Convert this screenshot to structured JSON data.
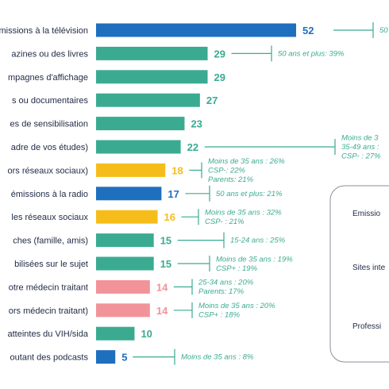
{
  "colors": {
    "blue": "#1f6fbf",
    "teal": "#3aab91",
    "yellow": "#f6bd1a",
    "pink": "#f2939a",
    "note": "#3aab91",
    "text": "#1f2a44"
  },
  "chart_data": {
    "type": "bar",
    "orientation": "horizontal",
    "xlim": [
      0,
      52
    ],
    "categories": [
      "missions à la télévision",
      "azines ou des livres",
      "mpagnes d'affichage",
      "s ou documentaires",
      "es de sensibilisation",
      "adre de vos études)",
      "ors réseaux sociaux)",
      "émissions à la radio",
      "les réseaux sociaux",
      "ches (famille, amis)",
      "bilisées sur le sujet",
      "otre médecin traitant",
      "ors médecin traitant)",
      "atteintes du VIH/sida",
      "outant des podcasts"
    ],
    "values": [
      52,
      29,
      29,
      27,
      23,
      22,
      18,
      17,
      16,
      15,
      15,
      14,
      14,
      10,
      5
    ],
    "bar_colors": [
      "blue",
      "teal",
      "teal",
      "teal",
      "teal",
      "teal",
      "yellow",
      "blue",
      "yellow",
      "teal",
      "teal",
      "pink",
      "pink",
      "teal",
      "blue"
    ],
    "annotations": [
      {
        "row": 0,
        "lines": [
          "50"
        ]
      },
      {
        "row": 1,
        "lines": [
          "50 ans et plus: 39%"
        ]
      },
      {
        "row": 5,
        "lines": [
          "Moins de 3",
          "35-49 ans :",
          "CSP- : 27%"
        ]
      },
      {
        "row": 6,
        "lines": [
          "Moins de 35 ans : 26%",
          "CSP-: 22%",
          "Parents: 21%"
        ]
      },
      {
        "row": 7,
        "lines": [
          "50 ans et plus: 21%"
        ]
      },
      {
        "row": 8,
        "lines": [
          "Moins de 35 ans : 32%",
          "CSP- : 21%"
        ]
      },
      {
        "row": 9,
        "lines": [
          "15-24 ans : 25%"
        ]
      },
      {
        "row": 10,
        "lines": [
          "Moins de 35 ans : 19%",
          "CSP+ : 19%"
        ]
      },
      {
        "row": 11,
        "lines": [
          "25-34 ans : 20%",
          "Parents: 17%"
        ]
      },
      {
        "row": 12,
        "lines": [
          "Moins de 35 ans : 20%",
          "CSP+ : 18%"
        ]
      },
      {
        "row": 14,
        "lines": [
          "Moins de 35 ans : 8%"
        ]
      }
    ]
  },
  "side_panel": {
    "items": [
      "Emissio",
      "Sites inte",
      "Professi"
    ]
  }
}
